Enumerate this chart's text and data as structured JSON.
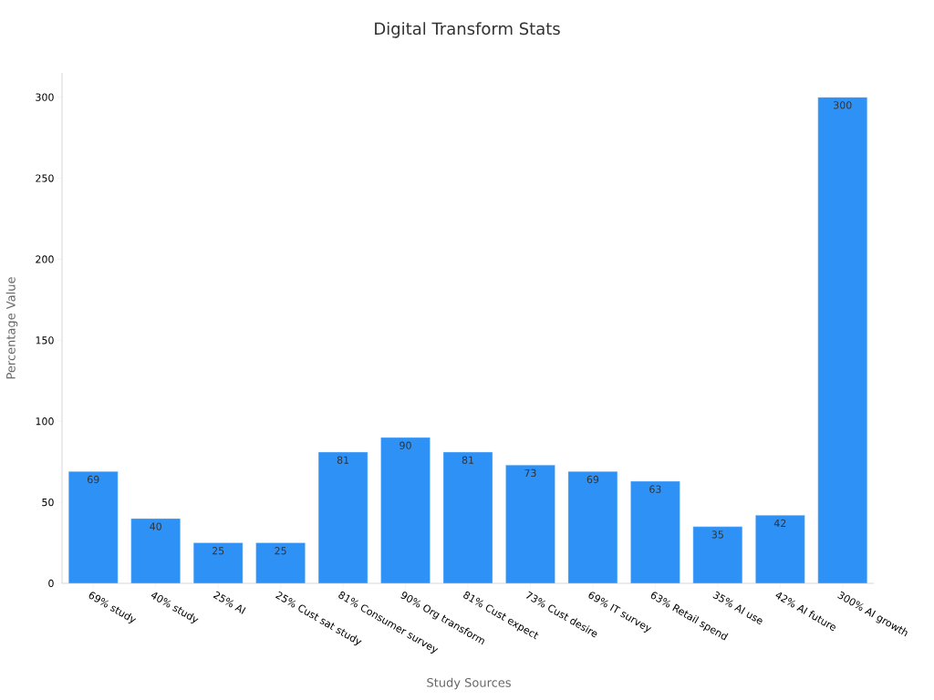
{
  "chart_data": {
    "type": "bar",
    "title": "Digital Transform Stats",
    "xlabel": "Study Sources",
    "ylabel": "Percentage Value",
    "categories": [
      "69% study",
      "40% study",
      "25% AI",
      "25% Cust sat study",
      "81% Consumer survey",
      "90% Org transform",
      "81% Cust expect",
      "73% Cust desire",
      "69% IT survey",
      "63% Retail spend",
      "35% AI use",
      "42% AI future",
      "300% AI growth"
    ],
    "values": [
      69,
      40,
      25,
      25,
      81,
      90,
      81,
      73,
      69,
      63,
      35,
      42,
      300
    ],
    "color": "#2e91f6",
    "ylim": [
      0,
      315
    ],
    "yticks": [
      0,
      50,
      100,
      150,
      200,
      250,
      300
    ],
    "data_labels": true
  }
}
